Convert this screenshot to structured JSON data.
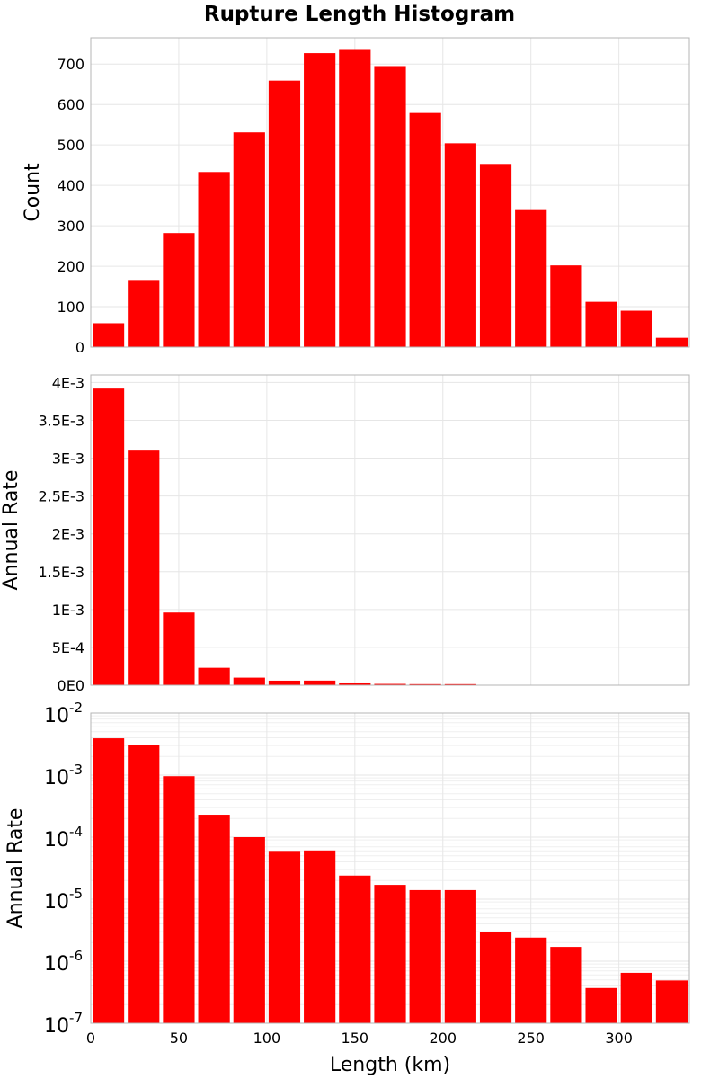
{
  "chart_data": {
    "title": "Rupture Length Histogram",
    "xlabel": "Length (km)",
    "x_ticks": [
      "0",
      "50",
      "100",
      "150",
      "200",
      "250",
      "300"
    ],
    "xlim": [
      0,
      340
    ],
    "bar_color": "#ff0000",
    "bins": {
      "start": 0,
      "width": 20
    },
    "panels": [
      {
        "type": "bar",
        "scale": "linear",
        "ylabel": "Count",
        "ylim": [
          0,
          765
        ],
        "y_ticks": [
          0,
          100,
          200,
          300,
          400,
          500,
          600,
          700
        ],
        "y_tick_labels": [
          "0",
          "100",
          "200",
          "300",
          "400",
          "500",
          "600",
          "700"
        ],
        "values": [
          59,
          166,
          282,
          433,
          531,
          659,
          727,
          735,
          695,
          579,
          504,
          453,
          341,
          202,
          112,
          90,
          23
        ]
      },
      {
        "type": "bar",
        "scale": "linear",
        "ylabel": "Annual Rate",
        "ylim": [
          0,
          0.0041
        ],
        "y_ticks": [
          0,
          0.0005,
          0.001,
          0.0015,
          0.002,
          0.0025,
          0.003,
          0.0035,
          0.004
        ],
        "y_tick_labels": [
          "0E0",
          "5E-4",
          "1E-3",
          "1.5E-3",
          "2E-3",
          "2.5E-3",
          "3E-3",
          "3.5E-3",
          "4E-3"
        ],
        "values": [
          0.00392,
          0.0031,
          0.00096,
          0.00023,
          0.0001,
          6e-05,
          6.1e-05,
          2.4e-05,
          1.7e-05,
          1.4e-05,
          1.4e-05,
          3e-06,
          2.4e-06,
          1.7e-06,
          3.7e-07,
          6.5e-07,
          4.9e-07
        ]
      },
      {
        "type": "bar",
        "scale": "log",
        "ylabel": "Annual Rate",
        "ylim": [
          1e-07,
          0.01
        ],
        "y_ticks": [
          1e-07,
          1e-06,
          1e-05,
          0.0001,
          0.001,
          0.01
        ],
        "y_tick_labels": [
          {
            "base": "10",
            "exp": "-7"
          },
          {
            "base": "10",
            "exp": "-6"
          },
          {
            "base": "10",
            "exp": "-5"
          },
          {
            "base": "10",
            "exp": "-4"
          },
          {
            "base": "10",
            "exp": "-3"
          },
          {
            "base": "10",
            "exp": "-2"
          }
        ],
        "values": [
          0.00392,
          0.0031,
          0.00096,
          0.00023,
          0.0001,
          6e-05,
          6.1e-05,
          2.4e-05,
          1.7e-05,
          1.4e-05,
          1.4e-05,
          3e-06,
          2.4e-06,
          1.7e-06,
          3.7e-07,
          6.5e-07,
          4.9e-07
        ]
      }
    ]
  }
}
